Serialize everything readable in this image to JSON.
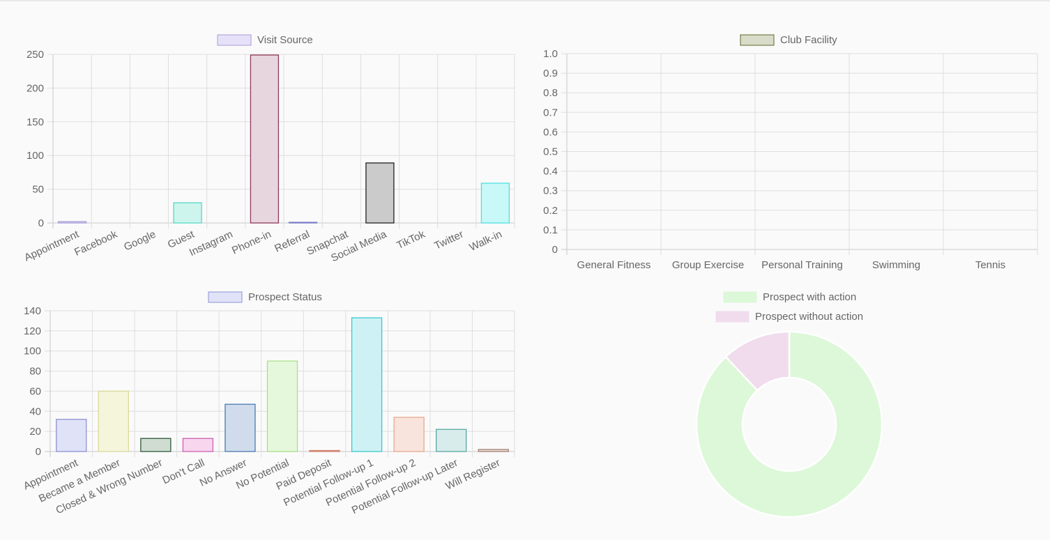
{
  "chart_data": [
    {
      "type": "bar",
      "legend": {
        "label": "Visit Source",
        "fill": "#e6e1f8",
        "stroke": "#a89ad8",
        "position": "top"
      },
      "categories": [
        "Appointment",
        "Facebook",
        "Google",
        "Guest",
        "Instagram",
        "Phone-in",
        "Referral",
        "Snapchat",
        "Social Media",
        "TikTok",
        "Twitter",
        "Walk-in"
      ],
      "values": [
        2,
        0,
        0,
        30,
        0,
        249,
        1,
        0,
        89,
        0,
        0,
        59
      ],
      "colors": [
        {
          "fill": "#e6e1f8",
          "stroke": "#a89ad8"
        },
        {
          "fill": "#dbe8f5",
          "stroke": "#8fb1d8"
        },
        {
          "fill": "#e8f5d8",
          "stroke": "#a9d48a"
        },
        {
          "fill": "#cdf5ee",
          "stroke": "#57d9c3"
        },
        {
          "fill": "#f5e6d8",
          "stroke": "#e0b08a"
        },
        {
          "fill": "#e8d6de",
          "stroke": "#8e3a5a"
        },
        {
          "fill": "#dcdcf5",
          "stroke": "#7d7dc8"
        },
        {
          "fill": "#f5dcdc",
          "stroke": "#d88f8f"
        },
        {
          "fill": "#cbcbcb",
          "stroke": "#222222"
        },
        {
          "fill": "#dcf0f5",
          "stroke": "#8fc8d8"
        },
        {
          "fill": "#f5f5dc",
          "stroke": "#d8d88f"
        },
        {
          "fill": "#c8f8f8",
          "stroke": "#4fe0e0"
        }
      ],
      "yticks": [
        0,
        50,
        100,
        150,
        200,
        250
      ],
      "ylim": [
        0,
        250
      ],
      "grid": true
    },
    {
      "type": "bar",
      "legend": {
        "label": "Club Facility",
        "fill": "#d8dcc8",
        "stroke": "#5a6a28",
        "position": "top"
      },
      "categories": [
        "General Fitness",
        "Group Exercise",
        "Personal Training",
        "Swimming",
        "Tennis"
      ],
      "values": [
        0,
        0,
        0,
        0,
        0
      ],
      "yticks": [
        "0",
        "0.1",
        "0.2",
        "0.3",
        "0.4",
        "0.5",
        "0.6",
        "0.7",
        "0.8",
        "0.9",
        "1.0"
      ],
      "ylim": [
        0,
        1
      ],
      "grid": true
    },
    {
      "type": "bar",
      "legend": {
        "label": "Prospect Status",
        "fill": "#e0e2f8",
        "stroke": "#8c92d0",
        "position": "top"
      },
      "categories": [
        "Appointment",
        "Became a Member",
        "Closed & Wrong Number",
        "Don't Call",
        "No Answer",
        "No Potential",
        "Paid Deposit",
        "Potential Follow-up 1",
        "Potential Follow-up 2",
        "Potential Follow-up Later",
        "Will Register"
      ],
      "values": [
        32,
        60,
        13,
        13,
        47,
        90,
        1,
        133,
        34,
        22,
        2
      ],
      "colors": [
        {
          "fill": "#e0e2f8",
          "stroke": "#8c92d0"
        },
        {
          "fill": "#f5f5dc",
          "stroke": "#dada9a"
        },
        {
          "fill": "#d0dcd2",
          "stroke": "#2e5a3a"
        },
        {
          "fill": "#f8d6ee",
          "stroke": "#d060b0"
        },
        {
          "fill": "#d0dcec",
          "stroke": "#4a78b0"
        },
        {
          "fill": "#e6f8dc",
          "stroke": "#a8e08a"
        },
        {
          "fill": "#f5dcd6",
          "stroke": "#d0806a"
        },
        {
          "fill": "#cef2f4",
          "stroke": "#3ac8d0"
        },
        {
          "fill": "#f8e4dc",
          "stroke": "#e8a890"
        },
        {
          "fill": "#d8ecec",
          "stroke": "#58a8a0"
        },
        {
          "fill": "#ece0dc",
          "stroke": "#a08070"
        }
      ],
      "yticks": [
        0,
        20,
        40,
        60,
        80,
        100,
        120,
        140
      ],
      "ylim": [
        0,
        140
      ],
      "grid": true
    },
    {
      "type": "pie",
      "variant": "doughnut",
      "legend": [
        {
          "label": "Prospect with action",
          "color": "#dcf8d8"
        },
        {
          "label": "Prospect without action",
          "color": "#f0dced"
        }
      ],
      "legend_position": "top",
      "values": [
        88,
        12
      ],
      "colors": [
        "#dcf8d8",
        "#f0dced"
      ]
    }
  ]
}
